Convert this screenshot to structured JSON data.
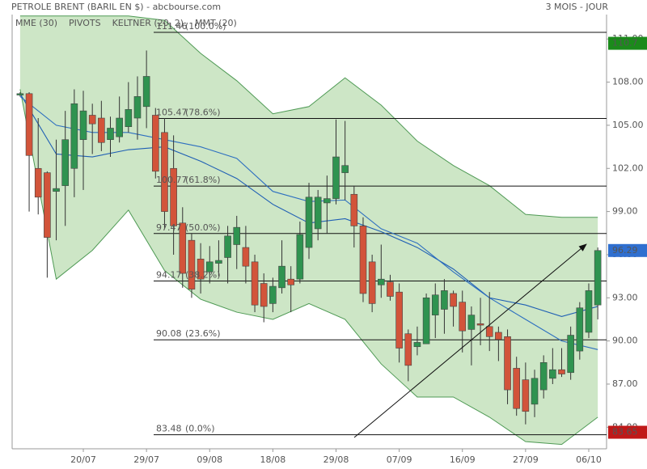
{
  "chart_data": {
    "type": "candlestick",
    "title": "PETROLE BRENT (BARIL EN $) - abcbourse.com",
    "period": "3 MOIS - JOUR",
    "categories": [
      null,
      null,
      null,
      null,
      null,
      null,
      null,
      "20/07",
      null,
      null,
      null,
      null,
      null,
      null,
      "29/07",
      null,
      null,
      null,
      null,
      null,
      null,
      "09/08",
      null,
      null,
      null,
      null,
      null,
      null,
      "18/08",
      null,
      null,
      null,
      null,
      null,
      null,
      "29/08",
      null,
      null,
      null,
      null,
      null,
      null,
      "07/09",
      null,
      null,
      null,
      null,
      null,
      null,
      "16/09",
      null,
      null,
      null,
      null,
      null,
      null,
      "27/09",
      null,
      null,
      null,
      null,
      null,
      null,
      "06/10",
      null
    ],
    "candles": {
      "up_color": "#2f9350",
      "down_color": "#d2543a",
      "open": [
        107.1,
        107.2,
        102,
        101.7,
        100.4,
        100.8,
        102,
        104,
        105.7,
        105.5,
        104,
        104.2,
        104.9,
        105.5,
        106.3,
        105.7,
        104.5,
        102,
        98.2,
        97,
        95.7,
        94.8,
        95.4,
        95.8,
        96.7,
        96.5,
        95.5,
        94,
        92.6,
        93.7,
        94.3,
        94.3,
        96.5,
        97.8,
        99.6,
        99.9,
        101.7,
        100.2,
        98,
        95.5,
        93.9,
        94.1,
        93.4,
        90.5,
        89.6,
        89.8,
        91.8,
        92.2,
        93.3,
        92.7,
        90.8,
        91.2,
        91,
        90.6,
        90.3,
        88.1,
        87.3,
        85.6,
        86.6,
        87.4,
        88,
        87.8,
        89.3,
        90.6,
        92.5
      ],
      "high": [
        107.3,
        107.3,
        105.5,
        101.8,
        104,
        106,
        107.5,
        107.4,
        106.5,
        106.7,
        105.6,
        107,
        108,
        108.4,
        110.2,
        106.2,
        105.5,
        104.3,
        99.3,
        97.5,
        96.8,
        96.6,
        97,
        98,
        98.7,
        98,
        96,
        94.7,
        94.4,
        97,
        95.2,
        98.3,
        101,
        100.5,
        101.5,
        105.4,
        105.3,
        100.8,
        98.6,
        96,
        96.7,
        94.6,
        94,
        90.8,
        91,
        93.3,
        94,
        94.3,
        93.5,
        93.5,
        92.4,
        93,
        93.4,
        91,
        90.8,
        88.9,
        88.5,
        88,
        89,
        89.5,
        89.5,
        91,
        92.7,
        94,
        96.5
      ],
      "low": [
        107,
        99,
        98.8,
        94.4,
        97,
        98,
        100,
        100.5,
        103,
        103.2,
        102.8,
        103.8,
        104.5,
        104,
        104.8,
        101.3,
        97.8,
        96,
        93.7,
        93,
        93.3,
        94,
        94.5,
        94,
        95,
        94,
        92,
        91.3,
        92,
        93.3,
        92,
        94,
        95.7,
        97,
        97.5,
        99.5,
        99.8,
        96.5,
        92.7,
        92,
        93,
        92.8,
        88.5,
        87.2,
        89,
        89.8,
        90.2,
        90.5,
        91,
        89.2,
        88.3,
        89.7,
        89.3,
        88.6,
        85.6,
        84.8,
        84.2,
        84.7,
        86,
        87,
        87.5,
        87.3,
        88.7,
        90.2,
        91.5
      ],
      "close": [
        107.2,
        102.9,
        100,
        97.2,
        100.6,
        104,
        106.5,
        106,
        105.1,
        103.8,
        104.8,
        105.5,
        106.1,
        107,
        108.4,
        101.8,
        99,
        98,
        94.7,
        93.6,
        94.3,
        95.5,
        95.6,
        97.3,
        97.9,
        95.2,
        92.5,
        92.4,
        93.8,
        95.2,
        93.9,
        97.4,
        100,
        100,
        99.9,
        102.8,
        102.2,
        98,
        93.3,
        92.6,
        94.3,
        93.1,
        89.5,
        88.3,
        89.9,
        93,
        93.2,
        93.5,
        92.4,
        90.7,
        91.8,
        91.1,
        90.3,
        90.1,
        86.6,
        85.3,
        85.1,
        87.4,
        88.5,
        88,
        87.7,
        90.4,
        92.3,
        93.5,
        96.29
      ]
    },
    "keltner": {
      "name": "KELTNER (20, 2)",
      "color": "#4f9a55",
      "x": [
        0,
        4,
        8,
        12,
        16,
        20,
        24,
        28,
        32,
        36,
        40,
        44,
        48,
        52,
        56,
        60,
        64
      ],
      "upper": [
        112.6,
        112.6,
        112.6,
        112.6,
        112.3,
        110,
        108.1,
        105.8,
        106.3,
        108.3,
        106.4,
        103.9,
        102.2,
        100.8,
        98.8,
        98.6,
        98.6
      ],
      "lower": [
        107.5,
        94.3,
        96.3,
        99.1,
        94.9,
        92.9,
        92,
        91.5,
        92.6,
        91.5,
        88.4,
        86.1,
        86.1,
        84.7,
        83,
        82.8,
        84.7
      ]
    },
    "lines": [
      {
        "name": "MME (30)",
        "color": "#1f5fb4",
        "x": [
          0,
          4,
          8,
          12,
          16,
          20,
          24,
          28,
          32,
          36,
          40,
          44,
          48,
          52,
          56,
          60,
          64
        ],
        "values": [
          107.2,
          103,
          102.8,
          103.3,
          103.5,
          102.5,
          101.3,
          99.5,
          98.2,
          98.5,
          97.6,
          96.5,
          95,
          93,
          92.5,
          91.7,
          92.4
        ]
      },
      {
        "name": "MMT (20)",
        "color": "#2d6fc0",
        "x": [
          0,
          4,
          8,
          12,
          16,
          20,
          24,
          28,
          32,
          36,
          40,
          44,
          48,
          52,
          56,
          60,
          64
        ],
        "values": [
          107,
          105,
          104.5,
          104.5,
          104,
          103.5,
          102.7,
          100.4,
          99.7,
          99.8,
          97.8,
          96.8,
          94.8,
          93,
          91.5,
          90,
          89.4
        ]
      }
    ],
    "pivots": {
      "name": "PIVOTS",
      "levels": [
        {
          "value": 111.46,
          "pct": "(100.0%)"
        },
        {
          "value": 105.47,
          "pct": "(78.6%)"
        },
        {
          "value": 100.77,
          "pct": "(61.8%)"
        },
        {
          "value": 97.47,
          "pct": "(50.0%)"
        },
        {
          "value": 94.17,
          "pct": "(38.2%)"
        },
        {
          "value": 90.08,
          "pct": "(23.6%)"
        },
        {
          "value": 83.48,
          "pct": "(0.0%)"
        }
      ]
    },
    "price_tags": [
      {
        "value": 110.7,
        "color": "#1b8a1b"
      },
      {
        "value": 96.29,
        "color": "#2f6fd0"
      },
      {
        "value": 83.65,
        "color": "#c01818"
      }
    ],
    "ylim": [
      82.5,
      112.7
    ],
    "yticks": [
      {
        "value": 84,
        "label": "84.00"
      },
      {
        "value": 87,
        "label": "87.00"
      },
      {
        "value": 90,
        "label": "90.00"
      },
      {
        "value": 93,
        "label": "93.00"
      },
      {
        "value": 96,
        "label": "96.00"
      },
      {
        "value": 99,
        "label": "99.00"
      },
      {
        "value": 102,
        "label": "102.00"
      },
      {
        "value": 105,
        "label": "105.00"
      },
      {
        "value": 108,
        "label": "108.00"
      },
      {
        "value": 111,
        "label": "111.00"
      }
    ]
  }
}
